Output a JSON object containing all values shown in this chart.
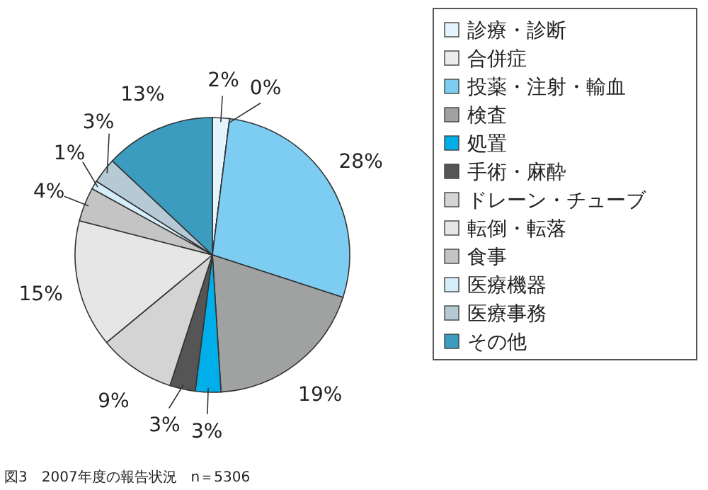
{
  "chart_data": {
    "type": "pie",
    "categories": [
      "診療・診断",
      "合併症",
      "投薬・注射・輸血",
      "検査",
      "処置",
      "手術・麻酔",
      "ドレーン・チューブ",
      "転倒・転落",
      "食事",
      "医療機器",
      "医療事務",
      "その他"
    ],
    "values": [
      2,
      0,
      28,
      19,
      3,
      3,
      9,
      15,
      4,
      1,
      3,
      13
    ],
    "colors": [
      "#e4f4fc",
      "#ececec",
      "#7dcdf2",
      "#a0a2a2",
      "#00aee9",
      "#555555",
      "#d4d4d4",
      "#e6e6e6",
      "#c4c4c4",
      "#d6eefa",
      "#b6cad6",
      "#3c9cc0"
    ],
    "value_labels": [
      "2%",
      "0%",
      "28%",
      "19%",
      "3%",
      "3%",
      "9%",
      "15%",
      "4%",
      "1%",
      "3%",
      "13%"
    ],
    "legend": "right",
    "annotations": [
      "図3　2007年度の報告状況　n＝5306"
    ]
  }
}
